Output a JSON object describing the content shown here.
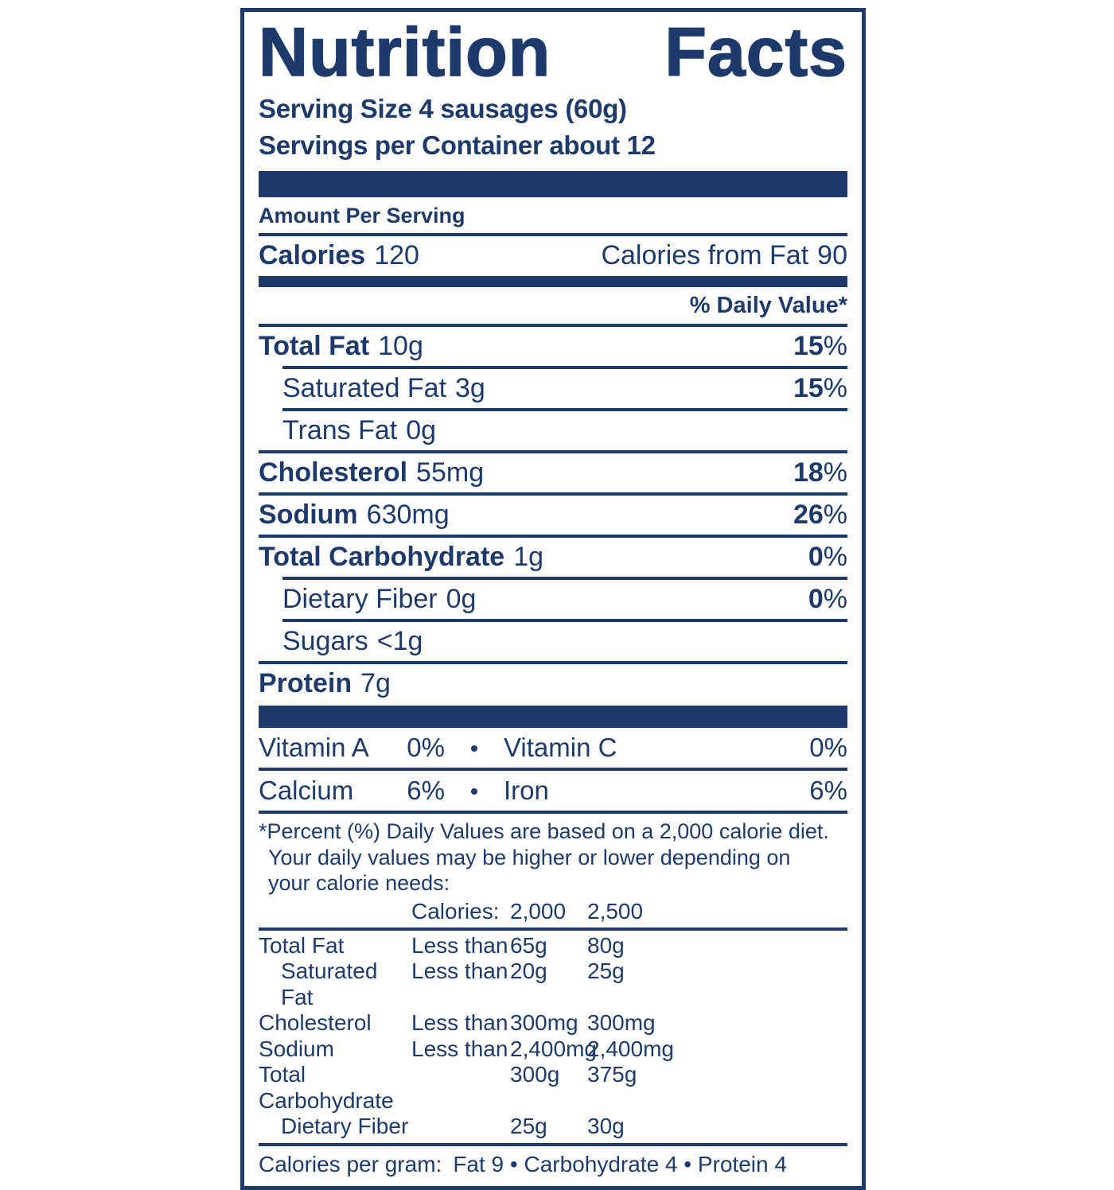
{
  "label": {
    "title": "Nutrition Facts",
    "title_words": [
      "Nutrition",
      "Facts"
    ],
    "serving_size": "Serving Size 4 sausages (60g)",
    "servings_per_container": "Servings per Container about 12",
    "amount_per_serving": "Amount Per Serving",
    "calories": {
      "label": "Calories",
      "value": "120",
      "from_fat_label": "Calories from Fat",
      "from_fat_value": "90"
    },
    "daily_value_header": "% Daily Value*",
    "percent_sign": "%",
    "bullet": "•",
    "nutrients": [
      {
        "name": "Total Fat",
        "amount": "10g",
        "dv": "15",
        "dv_pct": "%"
      },
      {
        "name": "Saturated Fat",
        "amount": "3g",
        "dv": "15",
        "dv_pct": "%"
      },
      {
        "name": "Trans Fat",
        "amount": "0g",
        "dv": "",
        "dv_pct": ""
      },
      {
        "name": "Cholesterol",
        "amount": "55mg",
        "dv": "18",
        "dv_pct": "%"
      },
      {
        "name": "Sodium",
        "amount": "630mg",
        "dv": "26",
        "dv_pct": "%"
      },
      {
        "name": "Total Carbohydrate",
        "amount": "1g",
        "dv": "0",
        "dv_pct": "%"
      },
      {
        "name": "Dietary Fiber",
        "amount": "0g",
        "dv": "0",
        "dv_pct": "%"
      },
      {
        "name": "Sugars",
        "amount": "<1g",
        "dv": "",
        "dv_pct": ""
      },
      {
        "name": "Protein",
        "amount": "7g",
        "dv": "",
        "dv_pct": ""
      }
    ],
    "micronutrients": [
      {
        "left_name": "Vitamin A",
        "left_value": "0%",
        "right_name": "Vitamin C",
        "right_value": "0%"
      },
      {
        "left_name": "Calcium",
        "left_value": "6%",
        "right_name": "Iron",
        "right_value": "6%"
      }
    ],
    "footnote_lines": [
      "*Percent (%) Daily Values are based on a 2,000 calorie diet.",
      "Your daily values may be higher or lower depending on",
      "your calorie needs:"
    ],
    "dv_table": {
      "header": {
        "calories_label": "Calories:",
        "col_2000": "2,000",
        "col_2500": "2,500"
      },
      "rows": [
        {
          "name": "Total Fat",
          "qualifier": "Less than",
          "v2000": "65g",
          "v2500": "80g"
        },
        {
          "name": "Saturated Fat",
          "qualifier": "Less than",
          "v2000": "20g",
          "v2500": "25g"
        },
        {
          "name": "Cholesterol",
          "qualifier": "Less than",
          "v2000": "300mg",
          "v2500": "300mg"
        },
        {
          "name": "Sodium",
          "qualifier": "Less than",
          "v2000": "2,400mg",
          "v2500": "2,400mg"
        },
        {
          "name": "Total Carbohydrate",
          "qualifier": "",
          "v2000": "300g",
          "v2500": "375g"
        },
        {
          "name": "Dietary Fiber",
          "qualifier": "",
          "v2000": "25g",
          "v2500": "30g"
        }
      ]
    },
    "calories_per_gram_label": "Calories per gram:",
    "calories_per_gram_items": "Fat 9 • Carbohydrate 4 • Protein 4",
    "colors": {
      "navy": "#1d3a6b",
      "background": "#ffffff"
    }
  }
}
